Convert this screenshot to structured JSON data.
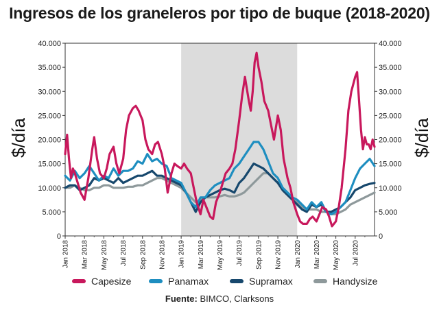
{
  "chart_data": {
    "type": "line",
    "title": "Ingresos de los graneleros por tipo de buque (2018-2020)",
    "ylabel": "$/día",
    "ylabel_right": "$/día",
    "ylim": [
      0,
      40000
    ],
    "yticks": [
      "0",
      "5.000",
      "10.000",
      "15.000",
      "20.000",
      "25.000",
      "30.000",
      "35.000",
      "40.000"
    ],
    "xticks": [
      "Jan 2018",
      "Mar 2018",
      "May 2018",
      "Jul 2018",
      "Sep 2018",
      "Nov 2018",
      "Jan 2019",
      "Mar 2019",
      "May 2019",
      "Jul 2019",
      "Sep 2019",
      "Nov 2019",
      "Jan 2020",
      "Mar 2020",
      "May 2020",
      "Jul 2020"
    ],
    "x_unit": "month index (0 = Jan 2018)",
    "xlim": [
      0,
      32
    ],
    "shaded_region": [
      12,
      24
    ],
    "series": [
      {
        "name": "Capesize",
        "color": "#c8185c",
        "x": [
          0,
          0.2,
          0.4,
          0.6,
          0.8,
          1,
          1.3,
          1.6,
          2,
          2.4,
          2.8,
          3,
          3.3,
          3.6,
          4,
          4.3,
          4.6,
          5,
          5.3,
          5.6,
          6,
          6.3,
          6.6,
          7,
          7.3,
          7.6,
          8,
          8.3,
          8.6,
          9,
          9.3,
          9.6,
          10,
          10.3,
          10.6,
          11,
          11.3,
          11.6,
          12,
          12.3,
          12.6,
          13,
          13.3,
          13.6,
          14,
          14.3,
          14.6,
          15,
          15.3,
          15.6,
          16,
          16.3,
          16.6,
          17,
          17.3,
          17.6,
          18,
          18.3,
          18.6,
          19,
          19.2,
          19.4,
          19.6,
          19.8,
          20,
          20.3,
          20.6,
          21,
          21.3,
          21.6,
          22,
          22.3,
          22.6,
          23,
          23.3,
          23.6,
          24,
          24.3,
          24.6,
          25,
          25.3,
          25.6,
          26,
          26.3,
          26.6,
          27,
          27.3,
          27.6,
          28,
          28.3,
          28.6,
          29,
          29.3,
          29.6,
          30,
          30.2,
          30.4,
          30.6,
          30.8,
          31,
          31.2,
          31.4,
          31.6,
          31.8,
          32
        ],
        "values": [
          17000,
          21000,
          16000,
          12000,
          14000,
          13000,
          11000,
          9000,
          7500,
          12000,
          18000,
          20500,
          16000,
          13000,
          12000,
          14000,
          17000,
          18500,
          15000,
          13000,
          16000,
          22000,
          25000,
          26500,
          27000,
          26000,
          24000,
          20000,
          18000,
          17000,
          19000,
          19500,
          17000,
          14000,
          9000,
          13000,
          15000,
          14500,
          14000,
          15000,
          14000,
          13000,
          10000,
          7000,
          4500,
          7500,
          6000,
          4000,
          3500,
          7000,
          9000,
          11000,
          13000,
          14000,
          15000,
          18000,
          24000,
          29000,
          33000,
          28000,
          26000,
          30000,
          36000,
          38000,
          35000,
          32000,
          28000,
          26000,
          23000,
          20000,
          25000,
          22000,
          16000,
          12000,
          10000,
          7000,
          4500,
          3000,
          2500,
          2500,
          3500,
          4000,
          3000,
          4500,
          6000,
          5500,
          4000,
          2000,
          3000,
          6000,
          10000,
          18000,
          26000,
          30000,
          33000,
          34000,
          28000,
          22000,
          18000,
          20500,
          19000,
          19000,
          18000,
          20000,
          18500
        ]
      },
      {
        "name": "Panamax",
        "color": "#1e8ec0",
        "x": [
          0,
          0.5,
          1,
          1.5,
          2,
          2.5,
          3,
          3.5,
          4,
          4.5,
          5,
          5.5,
          6,
          6.5,
          7,
          7.5,
          8,
          8.5,
          9,
          9.5,
          10,
          10.5,
          11,
          11.5,
          12,
          12.5,
          13,
          13.5,
          14,
          14.5,
          15,
          15.5,
          16,
          16.5,
          17,
          17.5,
          18,
          18.5,
          19,
          19.5,
          20,
          20.5,
          21,
          21.5,
          22,
          22.5,
          23,
          23.5,
          24,
          24.5,
          25,
          25.5,
          26,
          26.5,
          27,
          27.5,
          28,
          28.5,
          29,
          29.5,
          30,
          30.5,
          31,
          31.5,
          32
        ],
        "values": [
          12500,
          11500,
          13500,
          12000,
          13000,
          14500,
          13000,
          11500,
          12500,
          12000,
          14000,
          12500,
          13500,
          13500,
          14000,
          15500,
          15000,
          17000,
          15500,
          16000,
          15000,
          14500,
          12000,
          11500,
          11000,
          9000,
          7000,
          6000,
          8000,
          8000,
          9500,
          10500,
          11000,
          11500,
          12000,
          14000,
          15000,
          16500,
          18000,
          19500,
          19500,
          18000,
          15500,
          13000,
          12000,
          10000,
          9000,
          8000,
          7500,
          6500,
          5500,
          7000,
          6000,
          7000,
          5000,
          4500,
          5000,
          6000,
          7000,
          9500,
          12000,
          14000,
          15000,
          16000,
          14500
        ]
      },
      {
        "name": "Supramax",
        "color": "#17486d",
        "x": [
          0,
          0.5,
          1,
          1.5,
          2,
          2.5,
          3,
          3.5,
          4,
          4.5,
          5,
          5.5,
          6,
          6.5,
          7,
          7.5,
          8,
          8.5,
          9,
          9.5,
          10,
          10.5,
          11,
          11.5,
          12,
          12.5,
          13,
          13.5,
          14,
          14.5,
          15,
          15.5,
          16,
          16.5,
          17,
          17.5,
          18,
          18.5,
          19,
          19.5,
          20,
          20.5,
          21,
          21.5,
          22,
          22.5,
          23,
          23.5,
          24,
          24.5,
          25,
          25.5,
          26,
          26.5,
          27,
          27.5,
          28,
          28.5,
          29,
          29.5,
          30,
          30.5,
          31,
          31.5,
          32
        ],
        "values": [
          10000,
          10500,
          10500,
          9500,
          10000,
          10500,
          12000,
          11500,
          12000,
          11500,
          11000,
          12000,
          11000,
          11500,
          12000,
          12500,
          12500,
          13000,
          13500,
          12500,
          12500,
          12000,
          11500,
          11000,
          10500,
          9000,
          7000,
          5000,
          7000,
          8000,
          8500,
          9000,
          9500,
          9800,
          9500,
          9000,
          11000,
          12000,
          13500,
          15000,
          14500,
          14000,
          13000,
          12000,
          11000,
          9500,
          8500,
          7500,
          6500,
          5500,
          5000,
          6500,
          6000,
          6500,
          5000,
          5000,
          5500,
          6000,
          7000,
          8000,
          9500,
          10000,
          10500,
          10800,
          11000
        ]
      },
      {
        "name": "Handysize",
        "color": "#8e999b",
        "x": [
          0,
          0.5,
          1,
          1.5,
          2,
          2.5,
          3,
          3.5,
          4,
          4.5,
          5,
          5.5,
          6,
          6.5,
          7,
          7.5,
          8,
          8.5,
          9,
          9.5,
          10,
          10.5,
          11,
          11.5,
          12,
          12.5,
          13,
          13.5,
          14,
          14.5,
          15,
          15.5,
          16,
          16.5,
          17,
          17.5,
          18,
          18.5,
          19,
          19.5,
          20,
          20.5,
          21,
          21.5,
          22,
          22.5,
          23,
          23.5,
          24,
          24.5,
          25,
          25.5,
          26,
          26.5,
          27,
          27.5,
          28,
          28.5,
          29,
          29.5,
          30,
          30.5,
          31,
          31.5,
          32
        ],
        "values": [
          10000,
          10000,
          10500,
          10000,
          9500,
          9500,
          10000,
          10000,
          10500,
          10500,
          10000,
          10000,
          10000,
          10200,
          10200,
          10500,
          10500,
          11000,
          11500,
          12000,
          12000,
          11500,
          11000,
          10500,
          10000,
          9000,
          8000,
          7000,
          7500,
          8000,
          8000,
          8000,
          8200,
          8500,
          8200,
          8200,
          8500,
          9000,
          10000,
          11000,
          12000,
          13000,
          13000,
          12000,
          11000,
          9500,
          8500,
          7500,
          7000,
          6000,
          5500,
          5500,
          5500,
          5000,
          5000,
          4500,
          4500,
          5000,
          5500,
          6500,
          7000,
          7500,
          8000,
          8500,
          9000
        ]
      }
    ]
  },
  "legend": {
    "capesize": "Capesize",
    "panamax": "Panamax",
    "supramax": "Supramax",
    "handysize": "Handysize"
  },
  "source": {
    "label": "Fuente:",
    "text": "BIMCO, Clarksons"
  }
}
